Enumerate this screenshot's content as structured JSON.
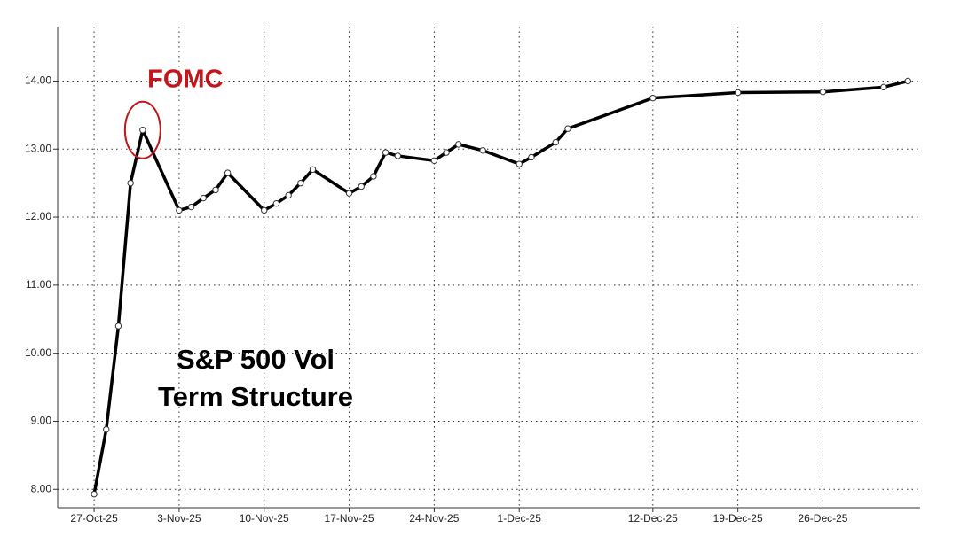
{
  "chart_data": {
    "type": "line",
    "title_lines": [
      "S&P 500 Vol",
      "Term Structure"
    ],
    "annotation": "FOMC",
    "annotation_color": "#c0161c",
    "x": [
      "2025-10-27",
      "2025-10-28",
      "2025-10-29",
      "2025-10-30",
      "2025-10-31",
      "2025-11-03",
      "2025-11-04",
      "2025-11-05",
      "2025-11-06",
      "2025-11-07",
      "2025-11-10",
      "2025-11-11",
      "2025-11-12",
      "2025-11-13",
      "2025-11-14",
      "2025-11-17",
      "2025-11-18",
      "2025-11-19",
      "2025-11-20",
      "2025-11-21",
      "2025-11-24",
      "2025-11-25",
      "2025-11-26",
      "2025-11-28",
      "2025-12-01",
      "2025-12-02",
      "2025-12-04",
      "2025-12-05",
      "2025-12-12",
      "2025-12-19",
      "2025-12-26",
      "2025-12-31",
      "2026-01-02"
    ],
    "series": [
      {
        "color": "#000000",
        "values": [
          7.93,
          8.88,
          10.4,
          12.5,
          13.28,
          12.1,
          12.15,
          12.28,
          12.4,
          12.65,
          12.1,
          12.2,
          12.32,
          12.5,
          12.7,
          12.35,
          12.45,
          12.6,
          12.95,
          12.9,
          12.83,
          12.95,
          13.07,
          12.98,
          12.78,
          12.88,
          13.1,
          13.3,
          13.75,
          13.83,
          13.84,
          13.91,
          14.0
        ]
      }
    ],
    "annotated_index": 4,
    "xlim": [
      "2025-10-24",
      "2026-01-03"
    ],
    "xticks": [
      {
        "value": "2025-10-27",
        "label": "27-Oct-25"
      },
      {
        "value": "2025-11-03",
        "label": "3-Nov-25"
      },
      {
        "value": "2025-11-10",
        "label": "10-Nov-25"
      },
      {
        "value": "2025-11-17",
        "label": "17-Nov-25"
      },
      {
        "value": "2025-11-24",
        "label": "24-Nov-25"
      },
      {
        "value": "2025-12-01",
        "label": "1-Dec-25"
      },
      {
        "value": "2025-12-12",
        "label": "12-Dec-25"
      },
      {
        "value": "2025-12-19",
        "label": "19-Dec-25"
      },
      {
        "value": "2025-12-26",
        "label": "26-Dec-25"
      }
    ],
    "ylim": [
      7.73,
      14.8
    ],
    "yticks": [
      {
        "value": 8,
        "label": "8.00"
      },
      {
        "value": 9,
        "label": "9.00"
      },
      {
        "value": 10,
        "label": "10.00"
      },
      {
        "value": 11,
        "label": "11.00"
      },
      {
        "value": 12,
        "label": "12.00"
      },
      {
        "value": 13,
        "label": "13.00"
      },
      {
        "value": 14,
        "label": "14.00"
      }
    ],
    "grid": true
  }
}
